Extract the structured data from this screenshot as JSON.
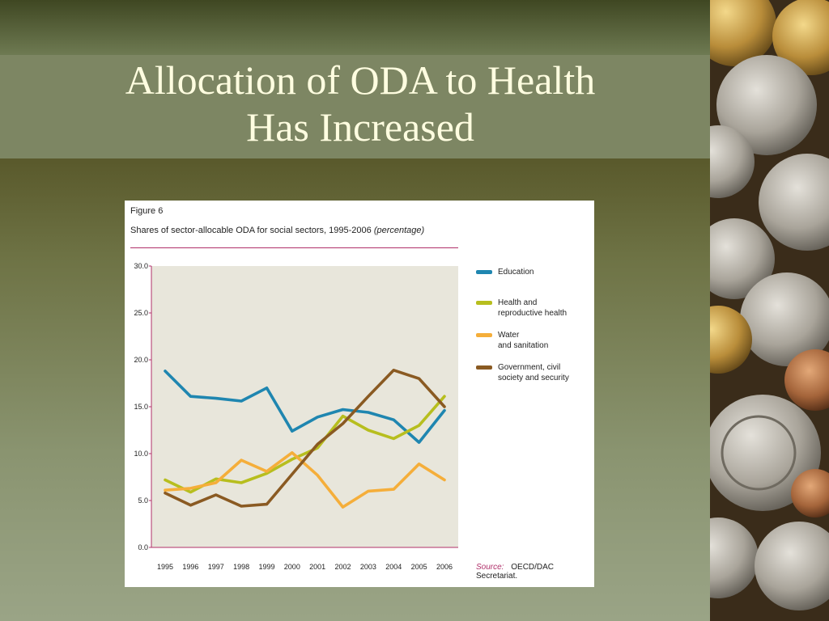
{
  "slide": {
    "title_line1": "Allocation of ODA to Health",
    "title_line2": "Has Increased"
  },
  "figure": {
    "label": "Figure 6",
    "title": "Shares of sector-allocable ODA for social sectors, 1995-2006",
    "title_unit": "(percentage)",
    "source_key": "Source:",
    "source_value": "OECD/DAC Secretariat."
  },
  "chart_data": {
    "type": "line",
    "x": [
      "1995",
      "1996",
      "1997",
      "1998",
      "1999",
      "2000",
      "2001",
      "2002",
      "2003",
      "2004",
      "2005",
      "2006"
    ],
    "yticks": [
      "0.0",
      "5.0",
      "10.0",
      "15.0",
      "20.0",
      "25.0",
      "30.0"
    ],
    "ylim": [
      0,
      30
    ],
    "grid": false,
    "legend_position": "right",
    "series": [
      {
        "name": "Education",
        "color": "#1f86b0",
        "values": [
          18.8,
          16.1,
          15.9,
          15.6,
          17.0,
          12.4,
          13.9,
          14.7,
          14.4,
          13.6,
          11.2,
          14.6
        ]
      },
      {
        "name": "Health and reproductive health",
        "color": "#b7be1e",
        "values": [
          7.2,
          5.9,
          7.3,
          6.9,
          7.9,
          9.4,
          10.6,
          14.0,
          12.5,
          11.6,
          13.0,
          16.1
        ]
      },
      {
        "name": "Water and sanitation",
        "color": "#f5ae3a",
        "values": [
          6.1,
          6.3,
          6.9,
          9.3,
          8.1,
          10.1,
          7.7,
          4.3,
          6.0,
          6.2,
          8.9,
          7.2
        ]
      },
      {
        "name": "Government, civil society and security",
        "color": "#8a5a22",
        "values": [
          5.8,
          4.5,
          5.6,
          4.4,
          4.6,
          7.8,
          11.0,
          13.2,
          16.1,
          18.9,
          18.0,
          15.0
        ]
      }
    ]
  },
  "legend_labels": [
    [
      "Education"
    ],
    [
      "Health and",
      "reproductive health"
    ],
    [
      "Water",
      "and sanitation"
    ],
    [
      "Government, civil",
      "society and security"
    ]
  ]
}
